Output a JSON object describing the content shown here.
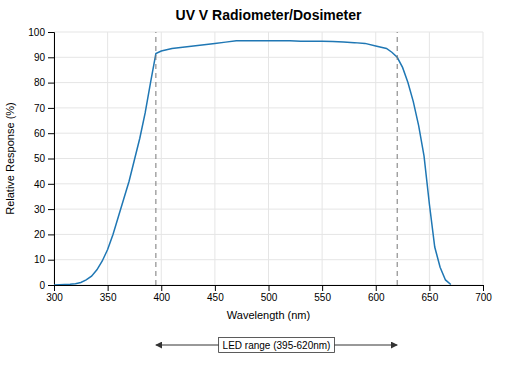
{
  "chart_data": {
    "type": "line",
    "title": "UV V Radiometer/Dosimeter",
    "xlabel": "Wavelength (nm)",
    "ylabel": "Relative Response (%)",
    "xlim": [
      300,
      700
    ],
    "ylim": [
      0,
      100
    ],
    "xticks": [
      300,
      350,
      400,
      450,
      500,
      550,
      600,
      650,
      700
    ],
    "yticks": [
      0,
      10,
      20,
      30,
      40,
      50,
      60,
      70,
      80,
      90,
      100
    ],
    "grid": true,
    "x": [
      300,
      310,
      315,
      320,
      325,
      330,
      335,
      340,
      345,
      350,
      355,
      360,
      365,
      370,
      375,
      380,
      385,
      390,
      395,
      400,
      405,
      410,
      420,
      430,
      440,
      450,
      460,
      470,
      480,
      490,
      500,
      510,
      520,
      530,
      540,
      550,
      560,
      570,
      580,
      590,
      600,
      605,
      610,
      615,
      620,
      625,
      630,
      635,
      640,
      645,
      650,
      655,
      660,
      665,
      670
    ],
    "values": [
      0,
      0.2,
      0.3,
      0.5,
      1.0,
      2.0,
      3.5,
      6.0,
      9.5,
      14.0,
      20.0,
      27.0,
      34.0,
      41.0,
      49.5,
      58.0,
      68.0,
      80.0,
      91.5,
      92.5,
      93.0,
      93.5,
      94.0,
      94.5,
      95.0,
      95.5,
      96.0,
      96.5,
      96.5,
      96.5,
      96.5,
      96.5,
      96.5,
      96.3,
      96.3,
      96.3,
      96.2,
      96.0,
      95.8,
      95.5,
      94.5,
      94.0,
      93.5,
      92.0,
      90.0,
      86.0,
      80.0,
      72.5,
      63.0,
      51.0,
      32.0,
      15.0,
      7.0,
      2.0,
      0.2
    ],
    "annotations": [
      {
        "text": "LED range (395-620nm)",
        "x": [
          395,
          620
        ]
      }
    ]
  }
}
